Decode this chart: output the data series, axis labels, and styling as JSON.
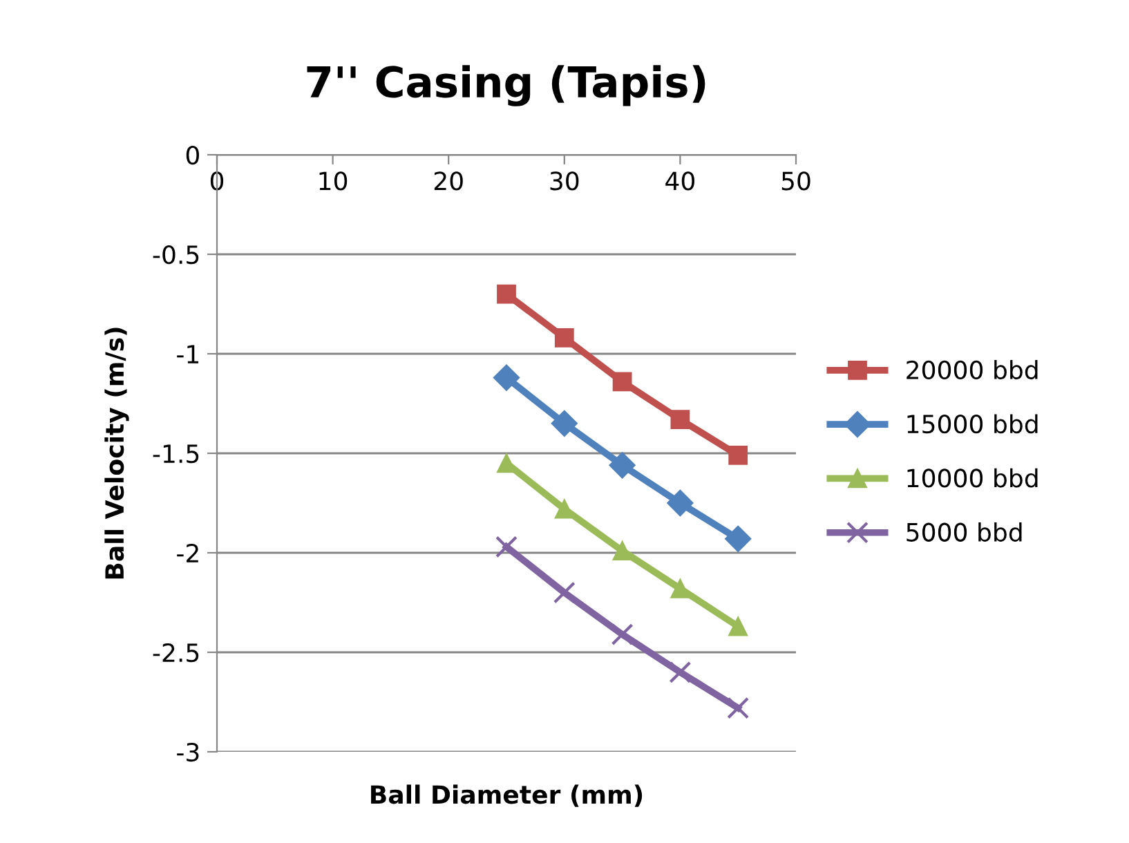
{
  "chart_data": {
    "type": "line",
    "title": "7'' Casing (Tapis)",
    "xlabel": "Ball Diameter (mm)",
    "ylabel": "Ball Velocity (m/s)",
    "x": [
      25,
      30,
      35,
      40,
      45
    ],
    "series": [
      {
        "name": "20000 bbd",
        "color": "#c0504d",
        "marker": "square",
        "values": [
          -0.7,
          -0.92,
          -1.14,
          -1.33,
          -1.51
        ]
      },
      {
        "name": "15000 bbd",
        "color": "#4f81bd",
        "marker": "diamond",
        "values": [
          -1.12,
          -1.35,
          -1.56,
          -1.75,
          -1.93
        ]
      },
      {
        "name": "10000 bbd",
        "color": "#9bbb59",
        "marker": "triangle",
        "values": [
          -1.55,
          -1.78,
          -1.99,
          -2.18,
          -2.37
        ]
      },
      {
        "name": "5000 bbd",
        "color": "#8064a2",
        "marker": "cross",
        "values": [
          -1.97,
          -2.2,
          -2.41,
          -2.6,
          -2.78
        ]
      }
    ],
    "xlim": [
      0,
      50
    ],
    "xticks": [
      0,
      10,
      20,
      30,
      40,
      50
    ],
    "ylim": [
      -3,
      0
    ],
    "yticks": [
      -3,
      -2.5,
      -2,
      -1.5,
      -1,
      -0.5,
      0
    ],
    "grid": "y",
    "legend": "right",
    "line_style": "solid"
  }
}
